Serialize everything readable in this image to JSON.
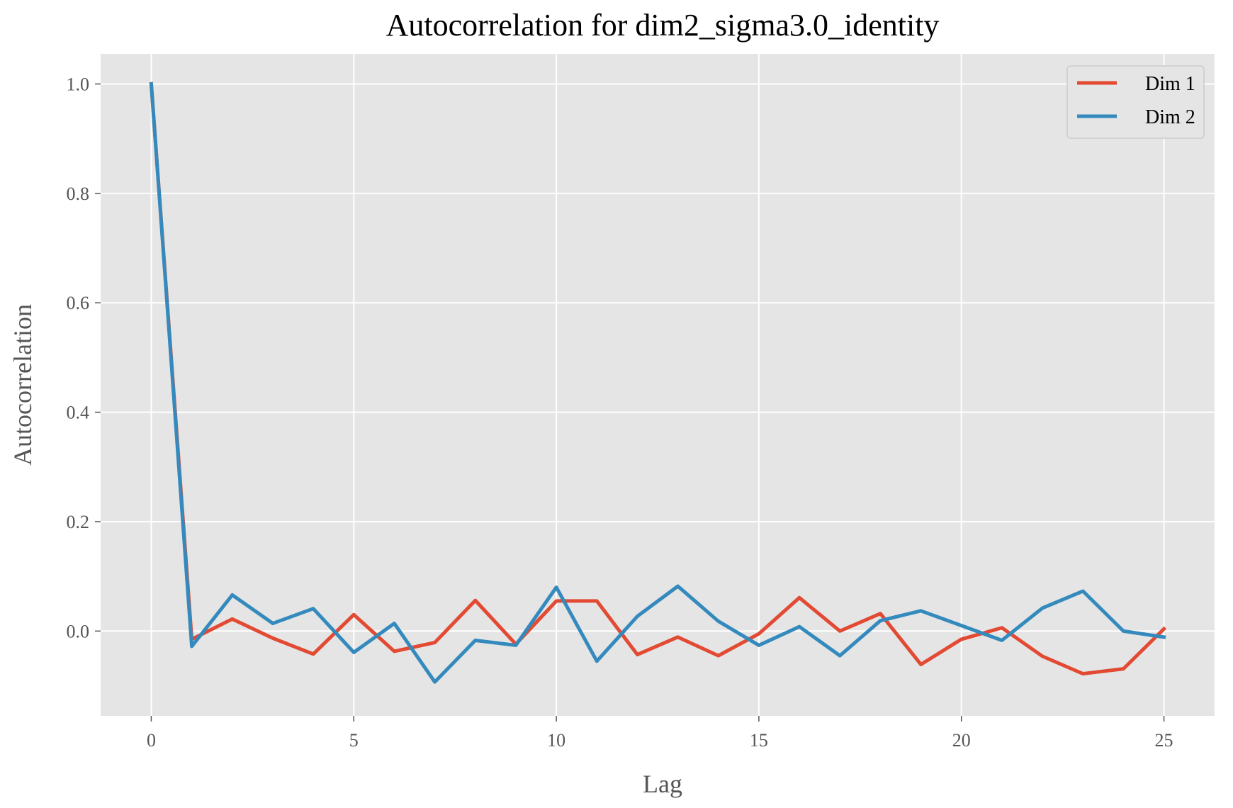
{
  "chart_data": {
    "type": "line",
    "title": "Autocorrelation for dim2_sigma3.0_identity",
    "xlabel": "Lag",
    "ylabel": "Autocorrelation",
    "xlim": [
      -1.25,
      26.25
    ],
    "ylim": [
      -0.155,
      1.055
    ],
    "x_ticks": [
      "0",
      "5",
      "10",
      "15",
      "20",
      "25"
    ],
    "y_ticks": [
      "0.0",
      "0.2",
      "0.4",
      "0.6",
      "0.8",
      "1.0"
    ],
    "grid": true,
    "legend_position": "top-right",
    "x": [
      0,
      1,
      2,
      3,
      4,
      5,
      6,
      7,
      8,
      9,
      10,
      11,
      12,
      13,
      14,
      15,
      16,
      17,
      18,
      19,
      20,
      21,
      22,
      23,
      24,
      25
    ],
    "series": [
      {
        "name": "Dim 1",
        "color": "#E24A33",
        "values": [
          1.0,
          -0.015,
          0.022,
          -0.013,
          -0.042,
          0.03,
          -0.037,
          -0.021,
          0.056,
          -0.024,
          0.055,
          0.055,
          -0.043,
          -0.011,
          -0.045,
          -0.005,
          0.061,
          0.0,
          0.032,
          -0.061,
          -0.015,
          0.006,
          -0.046,
          -0.078,
          -0.069,
          0.004
        ]
      },
      {
        "name": "Dim 2",
        "color": "#348ABD",
        "values": [
          1.0,
          -0.028,
          0.066,
          0.014,
          0.041,
          -0.039,
          0.014,
          -0.093,
          -0.017,
          -0.026,
          0.08,
          -0.055,
          0.027,
          0.082,
          0.018,
          -0.026,
          0.008,
          -0.045,
          0.019,
          0.037,
          0.01,
          -0.017,
          0.042,
          0.073,
          0.0,
          -0.011
        ]
      }
    ]
  }
}
